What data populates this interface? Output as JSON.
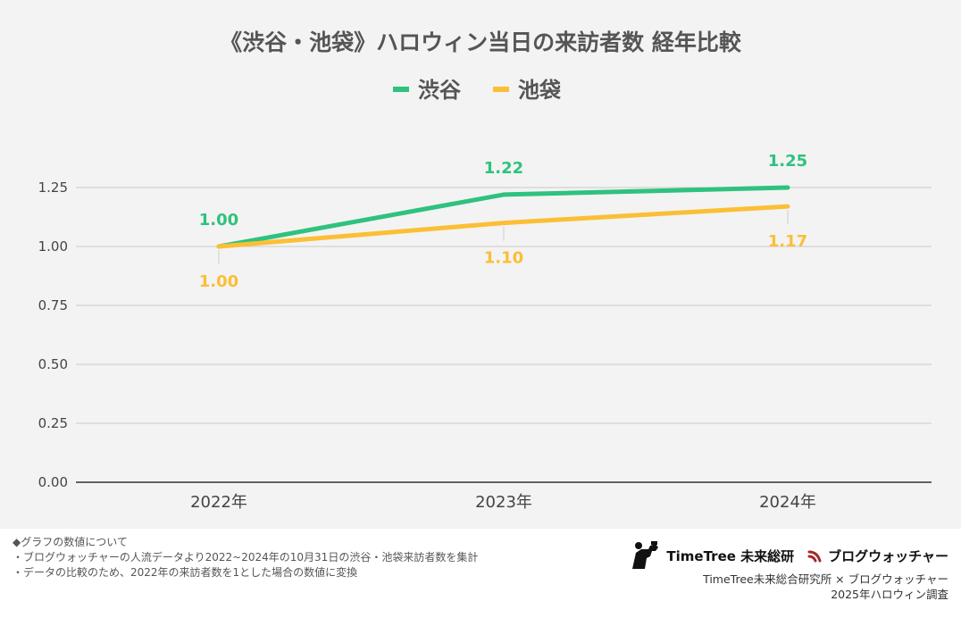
{
  "chart_data": {
    "type": "line",
    "title": "《渋谷・池袋》ハロウィン当日の来訪者数 経年比較",
    "categories": [
      "2022年",
      "2023年",
      "2024年"
    ],
    "series": [
      {
        "name": "渋谷",
        "values": [
          1.0,
          1.22,
          1.25
        ],
        "labels": [
          "1.00",
          "1.22",
          "1.25"
        ],
        "color": "#2ec27e",
        "label_position": "above"
      },
      {
        "name": "池袋",
        "values": [
          1.0,
          1.1,
          1.17
        ],
        "labels": [
          "1.00",
          "1.10",
          "1.17"
        ],
        "color": "#fbbf36",
        "label_position": "below"
      }
    ],
    "yticks": [
      "0.00",
      "0.25",
      "0.50",
      "0.75",
      "1.00",
      "1.25"
    ],
    "ylim": [
      0,
      1.25
    ],
    "grid": true,
    "legend": "top-center"
  },
  "notes": {
    "heading": "◆グラフの数値について",
    "items": [
      "・ブログウォッチャーの人流データより2022~2024年の10月31日の渋谷・池袋来訪者数を集計",
      "・データの比較のため、2022年の来訪者数を1とした場合の数値に変換"
    ]
  },
  "credits": {
    "timetree_logo": "TimeTree 未来総研",
    "blogwatcher_logo": "ブログウォッチャー",
    "line1": "TimeTree未来総合研究所 × ブログウォッチャー",
    "line2": "2025年ハロウィン調査"
  },
  "icons": {
    "timetree": "binoculars-person-icon",
    "blogwatcher": "signal-wave-icon"
  }
}
